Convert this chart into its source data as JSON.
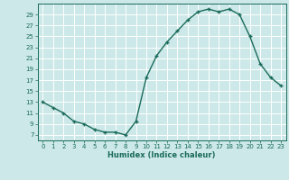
{
  "x": [
    0,
    1,
    2,
    3,
    4,
    5,
    6,
    7,
    8,
    9,
    10,
    11,
    12,
    13,
    14,
    15,
    16,
    17,
    18,
    19,
    20,
    21,
    22,
    23
  ],
  "y": [
    13,
    12,
    11,
    9.5,
    9,
    8,
    7.5,
    7.5,
    7,
    9.5,
    17.5,
    21.5,
    24,
    26,
    28,
    29.5,
    30,
    29.5,
    30,
    29,
    25,
    20,
    17.5,
    16
  ],
  "title": "",
  "xlabel": "Humidex (Indice chaleur)",
  "xlim": [
    -0.5,
    23.5
  ],
  "ylim": [
    6,
    31
  ],
  "yticks": [
    7,
    9,
    11,
    13,
    15,
    17,
    19,
    21,
    23,
    25,
    27,
    29
  ],
  "xticks": [
    0,
    1,
    2,
    3,
    4,
    5,
    6,
    7,
    8,
    9,
    10,
    11,
    12,
    13,
    14,
    15,
    16,
    17,
    18,
    19,
    20,
    21,
    22,
    23
  ],
  "line_color": "#1a6b5a",
  "marker": "+",
  "bg_color": "#cce8e8",
  "grid_color": "#ffffff",
  "tick_label_size": 5.0,
  "xlabel_size": 6.0
}
